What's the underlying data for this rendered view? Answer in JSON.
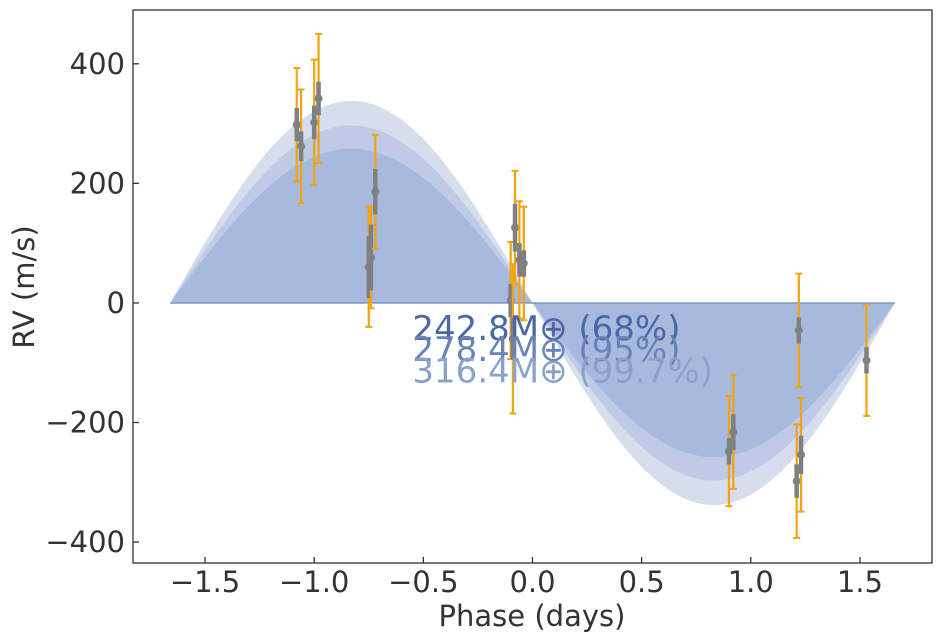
{
  "chart_data": {
    "type": "scatter",
    "title": "",
    "xlabel": "Phase (days)",
    "ylabel": "RV (m/s)",
    "xlim": [
      -1.83,
      1.83
    ],
    "ylim": [
      -435,
      490
    ],
    "grid": false,
    "x_ticks": [
      -1.5,
      -1.0,
      -0.5,
      0.0,
      0.5,
      1.0,
      1.5
    ],
    "x_tick_labels": [
      "−1.5",
      "−1.0",
      "−0.5",
      "0.0",
      "0.5",
      "1.0",
      "1.5"
    ],
    "y_ticks": [
      -400,
      -200,
      0,
      200,
      400
    ],
    "y_tick_labels": [
      "−400",
      "−200",
      "0",
      "200",
      "400"
    ],
    "bands": {
      "x_range": [
        -1.66,
        1.66
      ],
      "shape": "inverted-sine, zero at x=0",
      "amplitudes": [
        338,
        297,
        258
      ],
      "colors": [
        "#d6deee",
        "#bfcbe6",
        "#a7badd"
      ],
      "baseline_color": "#7f97c5"
    },
    "annotations": [
      {
        "text": "242.8M⊕ (68%)",
        "color": "#4a68a8",
        "x": -0.55,
        "y": -62
      },
      {
        "text": "278.4M⊕ (95%)",
        "color": "#6883b7",
        "x": -0.55,
        "y": -97
      },
      {
        "text": "316.4M⊕ (99.7%)",
        "color": "#8aa1cb",
        "x": -0.55,
        "y": -133
      }
    ],
    "points": [
      {
        "x": -1.08,
        "y": 298,
        "err_inner": 28,
        "err_outer": 95
      },
      {
        "x": -1.06,
        "y": 262,
        "err_inner": 25,
        "err_outer": 95
      },
      {
        "x": -1.0,
        "y": 302,
        "err_inner": 28,
        "err_outer": 105
      },
      {
        "x": -0.98,
        "y": 342,
        "err_inner": 28,
        "err_outer": 108
      },
      {
        "x": -0.75,
        "y": 60,
        "err_inner": 52,
        "err_outer": 100
      },
      {
        "x": -0.74,
        "y": 76,
        "err_inner": 55,
        "err_outer": 85
      },
      {
        "x": -0.72,
        "y": 186,
        "err_inner": 38,
        "err_outer": 95
      },
      {
        "x": -0.1,
        "y": 4,
        "err_inner": 28,
        "err_outer": 98
      },
      {
        "x": -0.08,
        "y": 126,
        "err_inner": 40,
        "err_outer": 95
      },
      {
        "x": -0.09,
        "y": -60,
        "err_inner": 35,
        "err_outer": 125
      },
      {
        "x": -0.06,
        "y": 72,
        "err_inner": 28,
        "err_outer": 98
      },
      {
        "x": -0.04,
        "y": 66,
        "err_inner": 22,
        "err_outer": 95
      },
      {
        "x": 0.9,
        "y": -248,
        "err_inner": 22,
        "err_outer": 92
      },
      {
        "x": 0.92,
        "y": -216,
        "err_inner": 30,
        "err_outer": 95
      },
      {
        "x": 1.21,
        "y": -298,
        "err_inner": 28,
        "err_outer": 95
      },
      {
        "x": 1.22,
        "y": -46,
        "err_inner": 22,
        "err_outer": 95
      },
      {
        "x": 1.23,
        "y": -254,
        "err_inner": 32,
        "err_outer": 95
      },
      {
        "x": 1.53,
        "y": -96,
        "err_inner": 22,
        "err_outer": 93
      }
    ],
    "colors": {
      "point": "#808080",
      "inner_error": "#808080",
      "outer_error": "#f2a30f",
      "axis": "#333333"
    }
  }
}
